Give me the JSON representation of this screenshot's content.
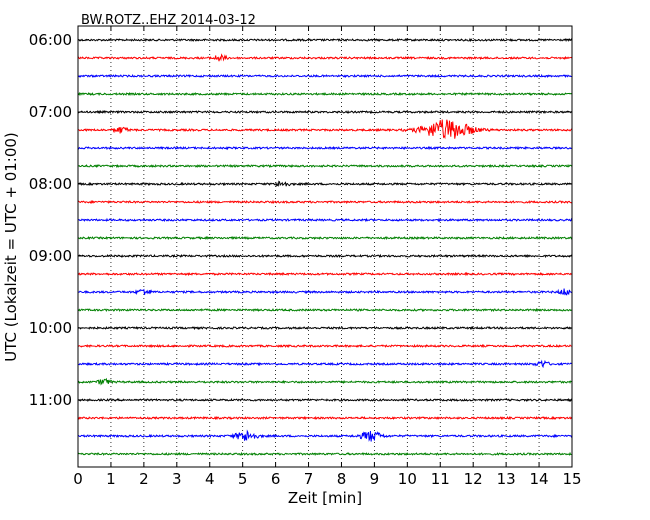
{
  "chart_data": {
    "type": "line",
    "title": "BW.ROTZ..EHZ 2014-03-12",
    "xlabel": "Zeit  [min]",
    "ylabel": "UTC (Lokalzeit = UTC + 01:00)",
    "xlim": [
      0,
      15
    ],
    "x_ticks": [
      "0",
      "1",
      "2",
      "3",
      "4",
      "5",
      "6",
      "7",
      "8",
      "9",
      "10",
      "11",
      "12",
      "13",
      "14",
      "15"
    ],
    "y_tick_labels": [
      "06:00",
      "07:00",
      "08:00",
      "09:00",
      "10:00",
      "11:00"
    ],
    "grid": "vertical dotted lines at each minute",
    "trace_interval_minutes": 15,
    "trace_start": "06:00",
    "trace_count": 24,
    "trace_colors": [
      "#000000",
      "#ff0000",
      "#0000ff",
      "#008000"
    ],
    "events": [
      {
        "trace_start": "06:15",
        "approx_minute": 4.3,
        "amplitude": "small"
      },
      {
        "trace_start": "07:15",
        "approx_minute": 1.3,
        "amplitude": "small"
      },
      {
        "trace_start": "07:15",
        "approx_minute": 11.2,
        "amplitude": "large"
      },
      {
        "trace_start": "08:00",
        "approx_minute": 6.2,
        "amplitude": "small"
      },
      {
        "trace_start": "09:30",
        "approx_minute": 2.0,
        "amplitude": "small"
      },
      {
        "trace_start": "09:30",
        "approx_minute": 14.8,
        "amplitude": "small"
      },
      {
        "trace_start": "10:30",
        "approx_minute": 14.1,
        "amplitude": "small"
      },
      {
        "trace_start": "10:45",
        "approx_minute": 0.8,
        "amplitude": "small"
      },
      {
        "trace_start": "11:30",
        "approx_minute": 5.1,
        "amplitude": "medium"
      },
      {
        "trace_start": "11:30",
        "approx_minute": 8.9,
        "amplitude": "medium"
      }
    ]
  }
}
